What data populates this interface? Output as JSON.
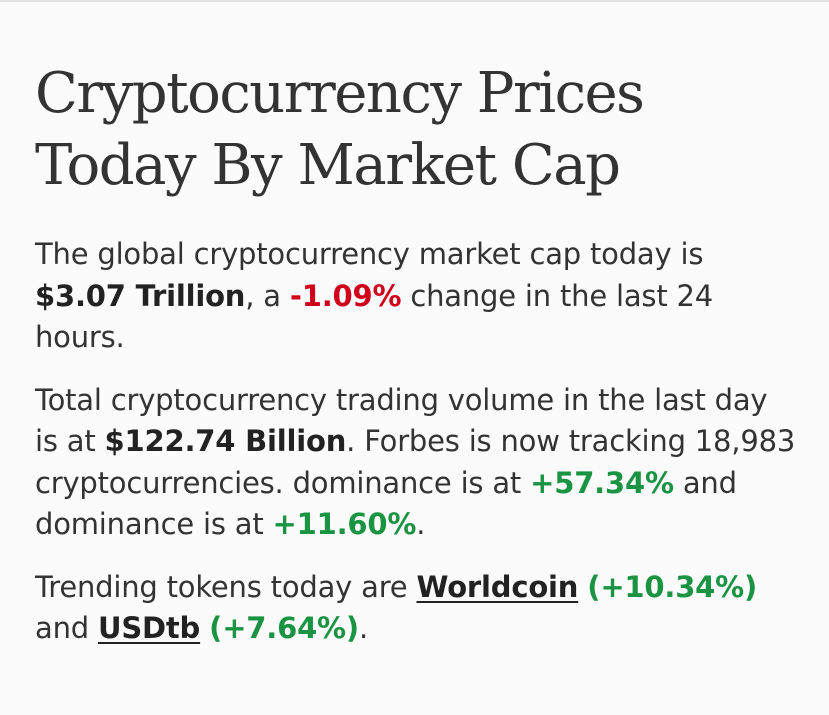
{
  "heading": {
    "line1": "Cryptocurrency Prices",
    "line2": "Today By Market Cap"
  },
  "market_cap": {
    "prefix": "The global cryptocurrency market cap today is ",
    "value": "$3.07 Trillion",
    "middle": ", a ",
    "change": "-1.09%",
    "suffix": " change in the last 24 hours."
  },
  "volume": {
    "prefix": "Total cryptocurrency trading volume in the last day is at ",
    "value": "$122.74 Billion",
    "middle": ". Forbes is now tracking 18,983 cryptocurrencies. dominance is at ",
    "dominance1": "+57.34%",
    "middle2": " and dominance is at ",
    "dominance2": "+11.60%",
    "suffix": "."
  },
  "trending": {
    "prefix": "Trending tokens today are ",
    "tokens": [
      {
        "name": "Worldcoin",
        "change": "(+10.34%)"
      },
      {
        "name": "USDtb",
        "change": "(+7.64%)"
      }
    ],
    "and": " and ",
    "suffix": "."
  },
  "colors": {
    "negative": "#d0021b",
    "positive": "#1a9443",
    "text": "#333333"
  }
}
